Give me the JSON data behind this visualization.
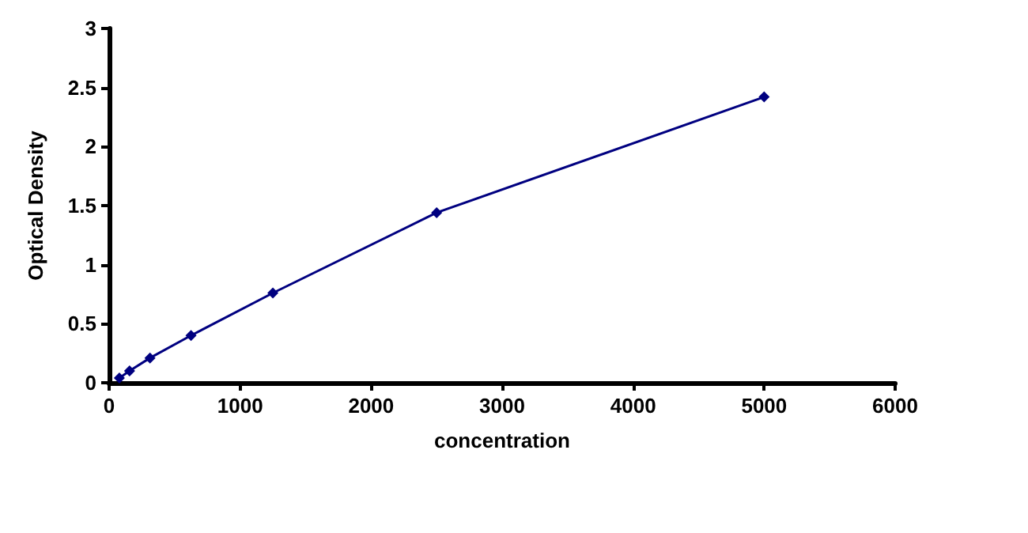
{
  "chart_data": {
    "type": "line",
    "xlabel": "concentration",
    "ylabel": "Optical Density",
    "x": [
      78,
      156,
      312,
      625,
      1250,
      2500,
      5000
    ],
    "series": [
      {
        "color": "#000080",
        "values": [
          0.04,
          0.1,
          0.21,
          0.4,
          0.76,
          1.44,
          2.42
        ]
      }
    ],
    "xlim": [
      0,
      6000
    ],
    "xticks": [
      0,
      1000,
      2000,
      3000,
      4000,
      5000,
      6000
    ],
    "ylim": [
      0,
      3
    ],
    "yticks": [
      0,
      0.5,
      1,
      1.5,
      2,
      2.5,
      3
    ],
    "grid": false,
    "marker": "diamond",
    "line_style": "solid"
  }
}
